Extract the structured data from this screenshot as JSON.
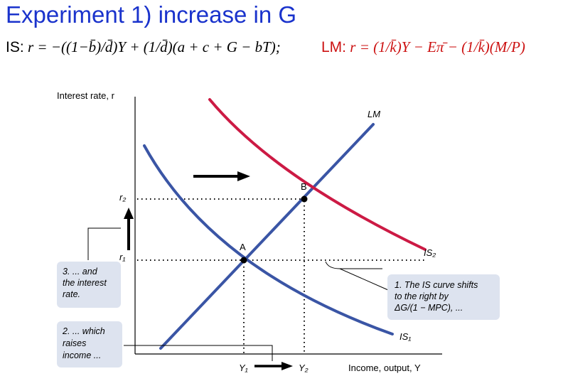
{
  "title": "Experiment 1) increase in G",
  "is_equation": {
    "label": "IS:",
    "text": "r = −((1−b̄)/d̄)Y + (1/d̄)(a + c + G − bT);"
  },
  "lm_equation": {
    "label": "LM:",
    "text": "r = (1/k̄)Y − Eπ̄ − (1/k̄)(M/P)"
  },
  "diagram": {
    "y_axis_label": "Interest rate, r",
    "x_axis_label": "Income, output, Y",
    "curves": {
      "lm": "LM",
      "is1": "IS₁",
      "is2": "IS₂"
    },
    "points": {
      "a": "A",
      "b": "B"
    },
    "ticks": {
      "r1": "r₁",
      "r2": "r₂",
      "y1": "Y₁",
      "y2": "Y₂"
    },
    "callouts": {
      "shift": "1. The IS curve shifts to the right by ΔG/(1 − MPC), ...",
      "shift_lines": [
        "1. The IS curve shifts",
        "to the right by",
        "ΔG/(1 − MPC), ..."
      ],
      "income_lines": [
        "2. ... which",
        "raises",
        "income ..."
      ],
      "rate_lines": [
        "3. ... and",
        "the interest",
        "rate."
      ]
    },
    "colors": {
      "is_curve": "#3a55a5",
      "lm_curve": "#3a55a5",
      "is2_curve": "#cc1a44",
      "callout_bg": "#dde3ef",
      "title": "#1a33cc",
      "lm_equation": "#cc1111"
    }
  }
}
